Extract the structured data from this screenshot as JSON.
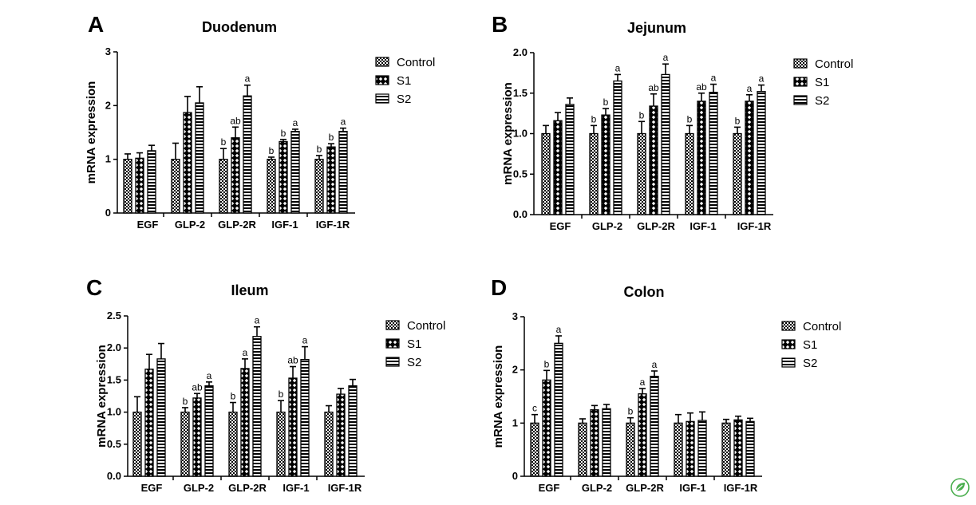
{
  "colors": {
    "ink": "#000000",
    "background": "#ffffff",
    "logo": "#4caf50"
  },
  "legend": [
    "Control",
    "S1",
    "S2"
  ],
  "logo_icon": "leaf-badge-icon",
  "chart_data": [
    {
      "type": "bar",
      "panel": "A",
      "title": "Duodenum",
      "xlabel": "",
      "ylabel": "mRNA expression",
      "ylim": [
        0,
        3
      ],
      "yticks": [
        "0",
        "1",
        "2",
        "3"
      ],
      "categories": [
        "EGF",
        "GLP-2",
        "GLP-2R",
        "IGF-1",
        "IGF-1R"
      ],
      "series": [
        {
          "name": "Control",
          "pattern": "checker",
          "values": [
            1.0,
            1.0,
            1.0,
            1.0,
            1.0
          ],
          "errors": [
            0.1,
            0.3,
            0.2,
            0.04,
            0.07
          ],
          "sig": [
            "",
            "",
            "b",
            "b",
            "b"
          ]
        },
        {
          "name": "S1",
          "pattern": "diamond",
          "values": [
            1.02,
            1.87,
            1.4,
            1.33,
            1.23
          ],
          "errors": [
            0.1,
            0.3,
            0.2,
            0.04,
            0.06
          ],
          "sig": [
            "",
            "",
            "ab",
            "b",
            "b"
          ]
        },
        {
          "name": "S2",
          "pattern": "hstripe",
          "values": [
            1.16,
            2.05,
            2.18,
            1.52,
            1.52
          ],
          "errors": [
            0.1,
            0.3,
            0.2,
            0.04,
            0.06
          ],
          "sig": [
            "",
            "",
            "a",
            "a",
            "a"
          ]
        }
      ],
      "grid": false,
      "legend_position": "right"
    },
    {
      "type": "bar",
      "panel": "B",
      "title": "Jejunum",
      "xlabel": "",
      "ylabel": "mRNA expression",
      "ylim": [
        0,
        2
      ],
      "yticks": [
        "0.0",
        "0.5",
        "1.0",
        "1.5",
        "2.0"
      ],
      "categories": [
        "EGF",
        "GLP-2",
        "GLP-2R",
        "IGF-1",
        "IGF-1R"
      ],
      "series": [
        {
          "name": "Control",
          "pattern": "checker",
          "values": [
            1.0,
            1.0,
            1.0,
            1.0,
            1.0
          ],
          "errors": [
            0.1,
            0.1,
            0.15,
            0.1,
            0.08
          ],
          "sig": [
            "",
            "b",
            "b",
            "b",
            "b"
          ]
        },
        {
          "name": "S1",
          "pattern": "diamond",
          "values": [
            1.16,
            1.23,
            1.34,
            1.4,
            1.4
          ],
          "errors": [
            0.1,
            0.08,
            0.15,
            0.1,
            0.08
          ],
          "sig": [
            "",
            "b",
            "ab",
            "ab",
            "a"
          ]
        },
        {
          "name": "S2",
          "pattern": "hstripe",
          "values": [
            1.36,
            1.65,
            1.73,
            1.51,
            1.52
          ],
          "errors": [
            0.08,
            0.08,
            0.13,
            0.1,
            0.08
          ],
          "sig": [
            "",
            "a",
            "a",
            "a",
            "a"
          ]
        }
      ],
      "grid": false,
      "legend_position": "right"
    },
    {
      "type": "bar",
      "panel": "C",
      "title": "Ileum",
      "xlabel": "",
      "ylabel": "mRNA expression",
      "ylim": [
        0,
        2.5
      ],
      "yticks": [
        "0.0",
        "0.5",
        "1.0",
        "1.5",
        "2.0",
        "2.5"
      ],
      "categories": [
        "EGF",
        "GLP-2",
        "GLP-2R",
        "IGF-1",
        "IGF-1R"
      ],
      "series": [
        {
          "name": "Control",
          "pattern": "checker",
          "values": [
            1.0,
            1.0,
            1.0,
            1.0,
            1.0
          ],
          "errors": [
            0.24,
            0.07,
            0.15,
            0.18,
            0.1
          ],
          "sig": [
            "",
            "b",
            "b",
            "b",
            ""
          ]
        },
        {
          "name": "S1",
          "pattern": "diamond",
          "values": [
            1.67,
            1.22,
            1.68,
            1.53,
            1.28
          ],
          "errors": [
            0.23,
            0.07,
            0.15,
            0.18,
            0.09
          ],
          "sig": [
            "",
            "ab",
            "a",
            "ab",
            ""
          ]
        },
        {
          "name": "S2",
          "pattern": "hstripe",
          "values": [
            1.83,
            1.41,
            2.18,
            1.82,
            1.41
          ],
          "errors": [
            0.24,
            0.06,
            0.15,
            0.2,
            0.1
          ],
          "sig": [
            "",
            "a",
            "a",
            "a",
            ""
          ]
        }
      ],
      "grid": false,
      "legend_position": "right"
    },
    {
      "type": "bar",
      "panel": "D",
      "title": "Colon",
      "xlabel": "",
      "ylabel": "mRNA expression",
      "ylim": [
        0,
        3
      ],
      "yticks": [
        "0",
        "1",
        "2",
        "3"
      ],
      "categories": [
        "EGF",
        "GLP-2",
        "GLP-2R",
        "IGF-1",
        "IGF-1R"
      ],
      "series": [
        {
          "name": "Control",
          "pattern": "checker",
          "values": [
            1.0,
            1.0,
            1.0,
            1.0,
            1.0
          ],
          "errors": [
            0.16,
            0.08,
            0.1,
            0.16,
            0.07
          ],
          "sig": [
            "c",
            "",
            "b",
            "",
            ""
          ]
        },
        {
          "name": "S1",
          "pattern": "diamond",
          "values": [
            1.81,
            1.25,
            1.55,
            1.03,
            1.06
          ],
          "errors": [
            0.18,
            0.08,
            0.1,
            0.16,
            0.07
          ],
          "sig": [
            "b",
            "",
            "a",
            "",
            ""
          ]
        },
        {
          "name": "S2",
          "pattern": "hstripe",
          "values": [
            2.5,
            1.27,
            1.88,
            1.05,
            1.03
          ],
          "errors": [
            0.14,
            0.08,
            0.1,
            0.16,
            0.06
          ],
          "sig": [
            "a",
            "",
            "a",
            "",
            ""
          ]
        }
      ],
      "grid": false,
      "legend_position": "right"
    }
  ]
}
